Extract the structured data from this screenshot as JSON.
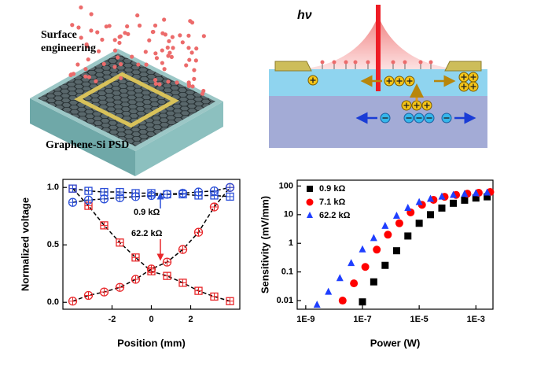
{
  "panels": {
    "surface_label": [
      "Surface",
      "engineering"
    ],
    "device_label": "Graphene-Si PSD",
    "light_label": "hν"
  },
  "chart_data": [
    {
      "type": "line",
      "xlabel": "Position (mm)",
      "ylabel": "Normalized voltage",
      "x": [
        -4,
        -3.2,
        -2.4,
        -1.6,
        -0.8,
        0,
        0.8,
        1.6,
        2.4,
        3.2,
        4
      ],
      "series": [
        {
          "color": "#e8282b",
          "marker": "square",
          "values": [
            0.99,
            0.84,
            0.67,
            0.52,
            0.39,
            0.27,
            0.23,
            0.17,
            0.1,
            0.05,
            0.01
          ]
        },
        {
          "color": "#e8282b",
          "marker": "circle",
          "values": [
            0.01,
            0.06,
            0.09,
            0.13,
            0.2,
            0.29,
            0.35,
            0.46,
            0.61,
            0.83,
            1.0
          ]
        },
        {
          "color": "#2b4fd8",
          "marker": "square",
          "values": [
            0.99,
            0.97,
            0.96,
            0.96,
            0.95,
            0.95,
            0.94,
            0.94,
            0.93,
            0.93,
            0.92
          ]
        },
        {
          "color": "#2b4fd8",
          "marker": "circle",
          "values": [
            0.87,
            0.89,
            0.9,
            0.91,
            0.92,
            0.93,
            0.94,
            0.95,
            0.96,
            0.97,
            1.0
          ]
        }
      ],
      "marker_fill": "none",
      "marker_cross": true,
      "line_color": "#000000",
      "line_style": "dashed",
      "xlim": [
        -4.5,
        4.5
      ],
      "xticks": [
        -2,
        0,
        2
      ],
      "ylim": [
        -0.06,
        1.07
      ],
      "yticks": [
        {
          "value": 0,
          "label": "0.0"
        },
        0.5,
        {
          "value": 1,
          "label": "1.0"
        }
      ],
      "annotations": [
        "0.9 kΩ",
        "62.2 kΩ"
      ]
    },
    {
      "type": "scatter",
      "xlabel": "Power (W)",
      "ylabel": "Sensitivity (mV/mm)",
      "xscale": "log",
      "yscale": "log",
      "legend": "upper left",
      "marker_fill": "filled",
      "series": [
        {
          "name": "0.9 kΩ",
          "color": "#000000",
          "marker": "square",
          "x": [
            1e-07,
            2.5e-07,
            6.3e-07,
            1.6e-06,
            4e-06,
            1e-05,
            2.5e-05,
            6.3e-05,
            0.00016,
            0.0004,
            0.001,
            0.0025
          ],
          "values": [
            0.009,
            0.045,
            0.17,
            0.55,
            1.8,
            5,
            10,
            17,
            25,
            32,
            38,
            42
          ]
        },
        {
          "name": "7.1 kΩ",
          "color": "#ff0000",
          "marker": "circle",
          "x": [
            2e-08,
            5e-08,
            1.26e-07,
            3.2e-07,
            7.9e-07,
            2e-06,
            5e-06,
            1.26e-05,
            3.2e-05,
            7.9e-05,
            0.0002,
            0.0005,
            0.00126,
            0.0032
          ],
          "values": [
            0.01,
            0.04,
            0.15,
            0.6,
            2,
            5,
            12,
            22,
            33,
            42,
            49,
            54,
            58,
            62
          ]
        },
        {
          "name": "62.2 kΩ",
          "color": "#1f3fff",
          "marker": "triangle",
          "x": [
            2.5e-09,
            6.3e-09,
            1.6e-08,
            4e-08,
            1e-07,
            2.5e-07,
            6.3e-07,
            1.6e-06,
            4e-06,
            1e-05,
            2.5e-05,
            6.3e-05,
            0.00016,
            0.0004,
            0.001,
            0.0025
          ],
          "values": [
            0.007,
            0.02,
            0.06,
            0.2,
            0.6,
            1.5,
            4,
            9,
            17,
            27,
            35,
            42,
            48,
            52,
            55,
            58
          ]
        }
      ],
      "xlim": [
        5e-10,
        0.004
      ],
      "xticks": [
        {
          "value": 1e-09,
          "label": "1E-9"
        },
        {
          "value": 1e-07,
          "label": "1E-7"
        },
        {
          "value": 1e-05,
          "label": "1E-5"
        },
        {
          "value": 0.001,
          "label": "1E-3"
        }
      ],
      "ylim": [
        0.005,
        160
      ],
      "yticks": [
        0.01,
        0.1,
        1,
        10,
        100
      ]
    }
  ]
}
